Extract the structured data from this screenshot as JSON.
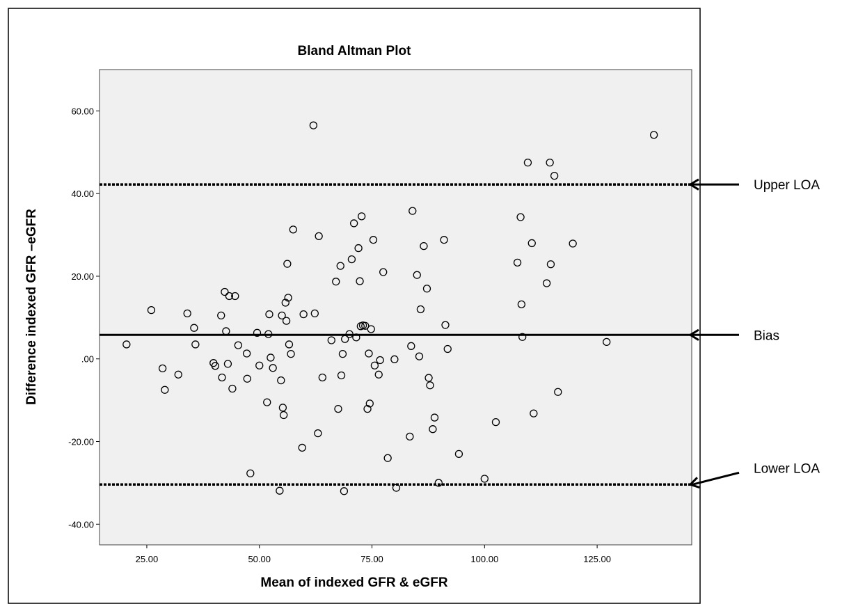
{
  "chart_data": {
    "type": "scatter",
    "title": "Bland Altman Plot",
    "xlabel": "Mean of indexed GFR & eGFR",
    "ylabel": "Difference indexed GFR –eGFR",
    "xlim": [
      14.5,
      146
    ],
    "ylim": [
      -45,
      70
    ],
    "xticks": [
      25,
      50,
      75,
      100,
      125
    ],
    "xtick_labels": [
      "25.00",
      "50.00",
      "75.00",
      "100.00",
      "125.00"
    ],
    "yticks": [
      -40,
      -20,
      0,
      20,
      40,
      60
    ],
    "ytick_labels": [
      "-40.00",
      "-20.00",
      ".00",
      "20.00",
      "40.00",
      "60.00"
    ],
    "grid": false,
    "marker": "open-circle",
    "reference_lines": [
      {
        "y": 42.2,
        "style": "dotted",
        "annotation": "Upper LOA"
      },
      {
        "y": 5.8,
        "style": "solid",
        "annotation": "Bias"
      },
      {
        "y": -30.4,
        "style": "dotted",
        "annotation": "Lower LOA"
      }
    ],
    "points": [
      [
        20.5,
        3.5
      ],
      [
        26.0,
        11.8
      ],
      [
        28.5,
        -2.3
      ],
      [
        29.0,
        -7.5
      ],
      [
        32.0,
        -3.8
      ],
      [
        34.0,
        11.0
      ],
      [
        35.5,
        7.5
      ],
      [
        35.8,
        3.5
      ],
      [
        39.8,
        -1.0
      ],
      [
        40.2,
        -1.7
      ],
      [
        41.5,
        10.5
      ],
      [
        41.7,
        -4.5
      ],
      [
        42.3,
        16.2
      ],
      [
        42.6,
        6.7
      ],
      [
        43.0,
        -1.2
      ],
      [
        43.3,
        15.2
      ],
      [
        44.0,
        -7.2
      ],
      [
        44.6,
        15.2
      ],
      [
        45.3,
        3.3
      ],
      [
        47.2,
        1.3
      ],
      [
        47.3,
        -4.8
      ],
      [
        48.0,
        -27.7
      ],
      [
        49.5,
        6.3
      ],
      [
        50.0,
        -1.6
      ],
      [
        51.7,
        -10.5
      ],
      [
        52.0,
        6.0
      ],
      [
        52.2,
        10.8
      ],
      [
        52.5,
        0.3
      ],
      [
        53.0,
        -2.2
      ],
      [
        54.5,
        -31.9
      ],
      [
        54.8,
        -5.2
      ],
      [
        55.0,
        10.5
      ],
      [
        55.2,
        -11.8
      ],
      [
        55.4,
        -13.6
      ],
      [
        55.8,
        13.6
      ],
      [
        56.0,
        9.2
      ],
      [
        56.2,
        23.0
      ],
      [
        56.4,
        14.8
      ],
      [
        56.6,
        3.5
      ],
      [
        57.0,
        1.2
      ],
      [
        57.5,
        31.3
      ],
      [
        59.5,
        -21.5
      ],
      [
        59.8,
        10.8
      ],
      [
        62.0,
        56.5
      ],
      [
        62.3,
        11.0
      ],
      [
        63.0,
        -18.0
      ],
      [
        63.2,
        29.7
      ],
      [
        64.0,
        -4.5
      ],
      [
        66.0,
        4.5
      ],
      [
        67.0,
        18.7
      ],
      [
        67.5,
        -12.1
      ],
      [
        68.0,
        22.5
      ],
      [
        68.2,
        -4.0
      ],
      [
        68.5,
        1.2
      ],
      [
        68.8,
        -32.0
      ],
      [
        69.0,
        4.8
      ],
      [
        70.0,
        6.0
      ],
      [
        70.5,
        24.1
      ],
      [
        71.0,
        32.8
      ],
      [
        71.5,
        5.2
      ],
      [
        72.0,
        26.8
      ],
      [
        72.3,
        18.8
      ],
      [
        72.5,
        7.9
      ],
      [
        72.7,
        34.5
      ],
      [
        73.0,
        8.1
      ],
      [
        73.5,
        8.0
      ],
      [
        74.0,
        -12.1
      ],
      [
        74.3,
        1.3
      ],
      [
        74.5,
        -10.8
      ],
      [
        74.8,
        7.2
      ],
      [
        75.3,
        28.8
      ],
      [
        75.6,
        -1.6
      ],
      [
        76.5,
        -3.8
      ],
      [
        76.8,
        -0.3
      ],
      [
        77.5,
        21.0
      ],
      [
        78.5,
        -24.0
      ],
      [
        80.0,
        -0.1
      ],
      [
        80.4,
        -31.2
      ],
      [
        83.4,
        -18.8
      ],
      [
        83.7,
        3.1
      ],
      [
        84.0,
        35.8
      ],
      [
        85.0,
        20.3
      ],
      [
        85.5,
        0.6
      ],
      [
        85.8,
        12.0
      ],
      [
        86.5,
        27.3
      ],
      [
        87.2,
        17.0
      ],
      [
        87.6,
        -4.6
      ],
      [
        87.9,
        -6.4
      ],
      [
        88.5,
        -17.0
      ],
      [
        88.9,
        -14.2
      ],
      [
        89.8,
        -30.0
      ],
      [
        91.0,
        28.8
      ],
      [
        91.3,
        8.2
      ],
      [
        91.8,
        2.4
      ],
      [
        94.3,
        -23.0
      ],
      [
        100.0,
        -29.0
      ],
      [
        102.5,
        -15.3
      ],
      [
        107.3,
        23.3
      ],
      [
        108.0,
        34.3
      ],
      [
        108.2,
        13.2
      ],
      [
        108.4,
        5.3
      ],
      [
        109.6,
        47.5
      ],
      [
        110.5,
        28.0
      ],
      [
        110.9,
        -13.2
      ],
      [
        113.8,
        18.3
      ],
      [
        114.5,
        47.5
      ],
      [
        114.7,
        22.9
      ],
      [
        115.5,
        44.3
      ],
      [
        116.3,
        -8.0
      ],
      [
        119.6,
        27.9
      ],
      [
        127.1,
        4.1
      ],
      [
        137.6,
        54.2
      ]
    ]
  }
}
